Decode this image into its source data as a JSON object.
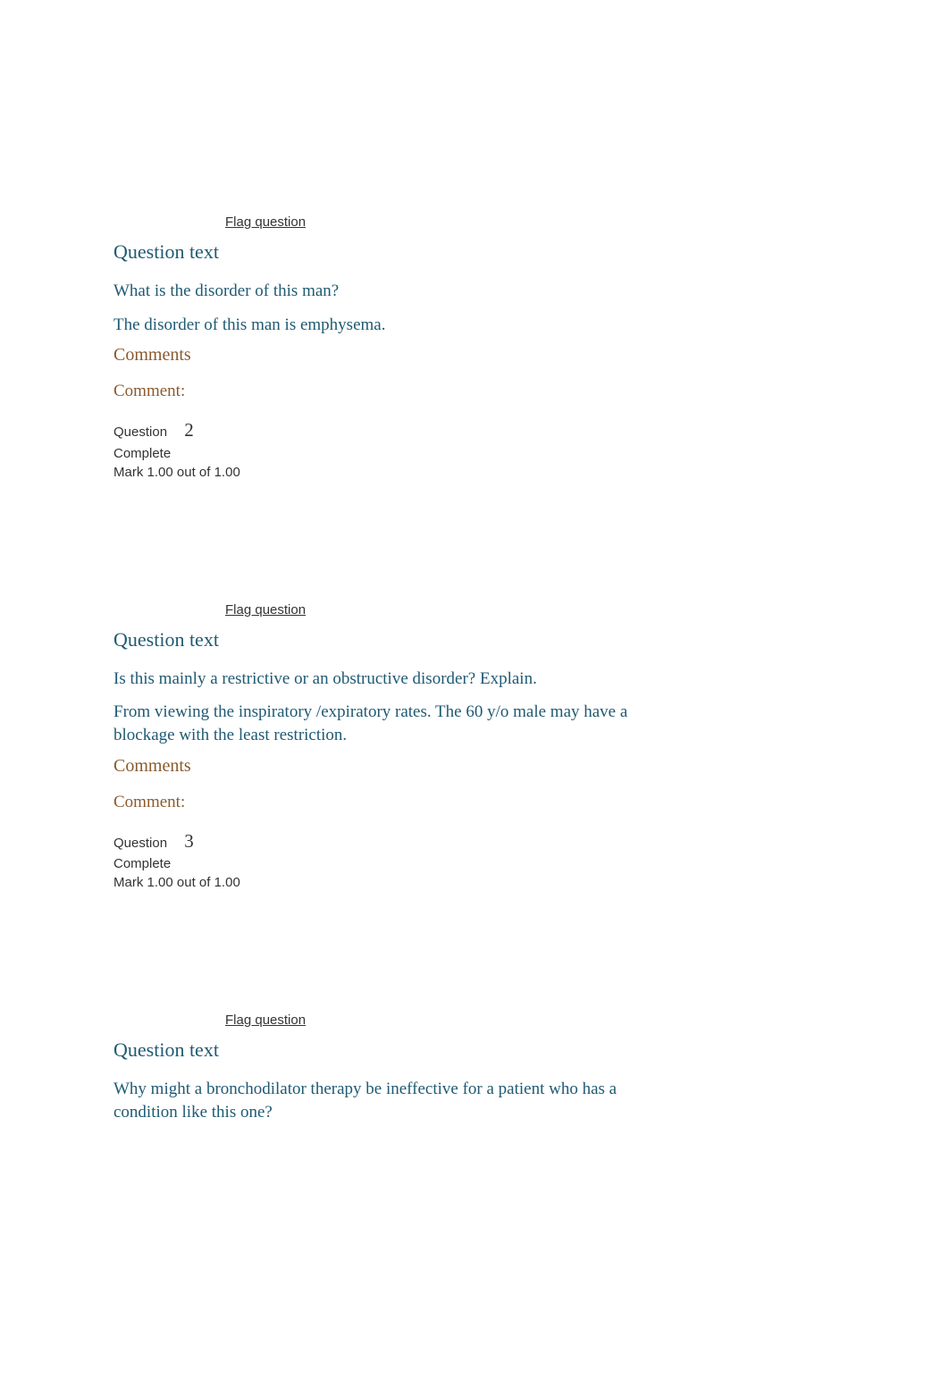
{
  "labels": {
    "flag_question": "Flag question",
    "question_text_heading": "Question text",
    "comments_heading": "Comments",
    "comment_label": "Comment:",
    "question_label": "Question",
    "complete_label": "Complete",
    "mark_prefix": "Mark"
  },
  "questions": [
    {
      "prompt": "What is the disorder of this man?",
      "answer": "The disorder of this man is emphysema."
    },
    {
      "number": "2",
      "status": "Complete",
      "mark_earned": "1.00",
      "mark_total": "1.00",
      "prompt": "Is this mainly a restrictive or an obstructive disorder? Explain.",
      "answer": "From viewing the inspiratory /expiratory rates. The 60 y/o male may have a blockage with the least restriction."
    },
    {
      "number": "3",
      "status": "Complete",
      "mark_earned": "1.00",
      "mark_total": "1.00",
      "prompt": "Why might a bronchodilator therapy be ineffective for a patient who has a condition like this one?"
    }
  ]
}
